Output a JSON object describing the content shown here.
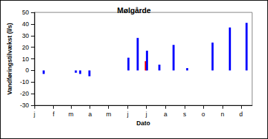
{
  "chart_data": {
    "type": "bar",
    "title": "Mølgårde",
    "x_label": "Dato",
    "y_label": "Vandføringstilvækst (l/s)",
    "x": [
      16,
      68,
      75,
      90,
      153,
      168,
      181,
      183,
      203,
      226,
      248,
      289,
      317,
      344
    ],
    "values": [
      -3,
      -2,
      -3,
      -5,
      11,
      28,
      8,
      17,
      5,
      22,
      2,
      24,
      37,
      41
    ],
    "colors": [
      "#0000ff",
      "#0000ff",
      "#0000ff",
      "#0000ff",
      "#0000ff",
      "#0000ff",
      "#ff0000",
      "#0000ff",
      "#0000ff",
      "#0000ff",
      "#0000ff",
      "#0000ff",
      "#0000ff",
      "#0000ff"
    ],
    "xlim": [
      1,
      353
    ],
    "xticks": [
      {
        "value": 1,
        "label": "j"
      },
      {
        "value": 32,
        "label": "f"
      },
      {
        "value": 60,
        "label": "m"
      },
      {
        "value": 91,
        "label": "a"
      },
      {
        "value": 121,
        "label": "m"
      },
      {
        "value": 152,
        "label": "j"
      },
      {
        "value": 182,
        "label": "j"
      },
      {
        "value": 213,
        "label": "a"
      },
      {
        "value": 244,
        "label": "s"
      },
      {
        "value": 274,
        "label": "o"
      },
      {
        "value": 305,
        "label": "n"
      },
      {
        "value": 335,
        "label": "d"
      }
    ],
    "ylim": [
      -30,
      50
    ],
    "yticks": [
      -30,
      -20,
      -10,
      0,
      10,
      20,
      30,
      40,
      50
    ],
    "grid": false
  }
}
